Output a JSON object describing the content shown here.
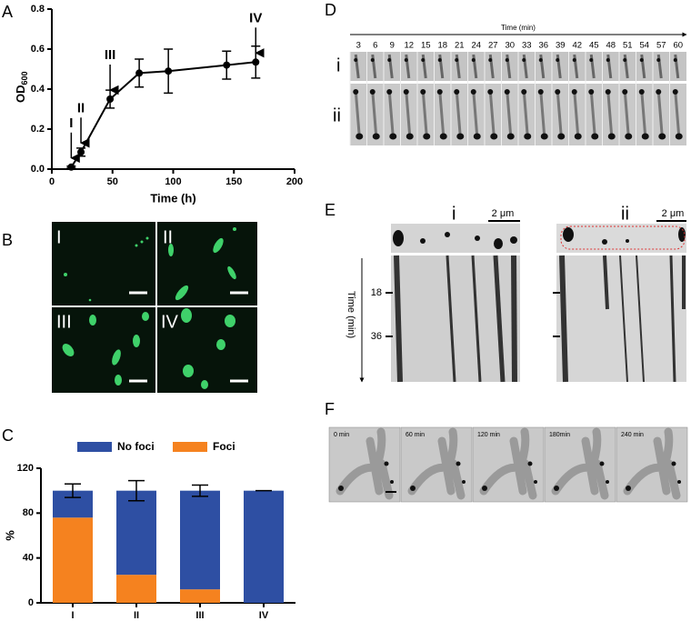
{
  "panel_labels": [
    "A",
    "B",
    "C",
    "D",
    "E",
    "F"
  ],
  "chart_data": [
    {
      "type": "line",
      "xlabel": "Time (h)",
      "ylabel": "OD",
      "ylabel_sub": "600",
      "x": [
        16,
        24,
        48,
        72,
        96,
        144,
        168
      ],
      "values": [
        0.01,
        0.085,
        0.35,
        0.48,
        0.49,
        0.52,
        0.535
      ],
      "errors": [
        0.005,
        0.02,
        0.045,
        0.07,
        0.11,
        0.07,
        0.08
      ],
      "color": "#000000",
      "xlim": [
        0,
        200
      ],
      "xticks": [
        0,
        50,
        100,
        150,
        200
      ],
      "ylim": [
        0,
        0.8
      ],
      "yticks": [
        {
          "value": 0,
          "label": "0.0"
        },
        0.2,
        0.4,
        0.6,
        0.8
      ],
      "annotations": [
        "I",
        "II",
        "III",
        "IV"
      ]
    },
    {
      "type": "stacked_bar",
      "ylabel": "%",
      "categories": [
        "I",
        "II",
        "III",
        "IV"
      ],
      "series": [
        {
          "name": "Foci",
          "color": "#f5821f",
          "values": [
            76,
            25,
            12,
            0
          ]
        },
        {
          "name": "No foci",
          "color": "#2e4fa3",
          "values": [
            24,
            75,
            88,
            100
          ],
          "errors": [
            6,
            9,
            5,
            0
          ]
        }
      ],
      "ylim": [
        0,
        120
      ],
      "yticks": [
        0,
        40,
        80,
        120
      ]
    }
  ],
  "B": {
    "labels": [
      "I",
      "II",
      "III",
      "IV"
    ]
  },
  "D": {
    "axis_label": "Time (min)",
    "times": [
      3,
      6,
      9,
      12,
      15,
      18,
      21,
      24,
      27,
      30,
      33,
      36,
      39,
      42,
      45,
      48,
      51,
      54,
      57,
      60
    ],
    "rows": [
      "i",
      "ii"
    ]
  },
  "E": {
    "labels": [
      "i",
      "ii"
    ],
    "scale": [
      "2 μm",
      "2 μm"
    ],
    "axis_label": "Time (min)",
    "ticks": [
      18,
      36
    ]
  },
  "F": {
    "times": [
      "0 min",
      "60 min",
      "120 min",
      "180min",
      "240 min"
    ]
  }
}
